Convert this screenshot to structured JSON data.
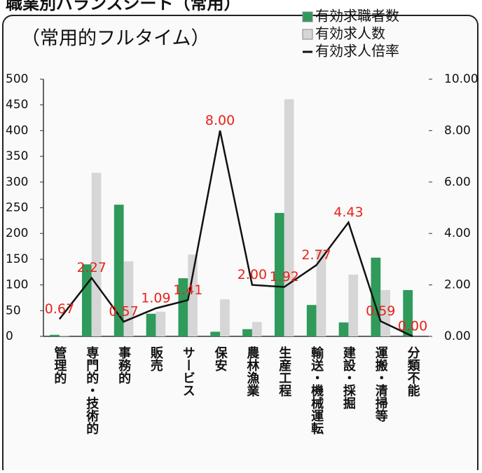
{
  "chart_data": {
    "type": "bar_line",
    "title": "職業別バランスシート（常用）",
    "subtitle": "（常用的フルタイム）",
    "categories": [
      "管理的",
      "専門的・技術的",
      "事務的",
      "販売",
      "サービス",
      "保安",
      "農林漁業",
      "生産工程",
      "輸送・機械運転",
      "建設・採掘",
      "運搬・清掃等",
      "分類不能"
    ],
    "series": [
      {
        "name": "有効求職者数",
        "color": "#2f9a5a",
        "type": "bar",
        "values": [
          3,
          140,
          256,
          44,
          113,
          9,
          14,
          240,
          61,
          27,
          153,
          90
        ]
      },
      {
        "name": "有効求人数",
        "color": "#d6d6d6",
        "type": "bar",
        "values": [
          2,
          318,
          146,
          48,
          159,
          72,
          28,
          461,
          169,
          120,
          90,
          0
        ]
      },
      {
        "name": "有効求人倍率",
        "color": "#111111",
        "type": "line",
        "axis": "y2",
        "values": [
          0.67,
          2.27,
          0.57,
          1.09,
          1.41,
          8.0,
          2.0,
          1.92,
          2.77,
          4.43,
          0.59,
          0.0
        ],
        "value_labels": [
          "0.67",
          "2.27",
          "0.57",
          "1.09",
          "1.41",
          "8.00",
          "2.00",
          "1.92",
          "2.77",
          "4.43",
          "0.59",
          "0.00"
        ],
        "value_label_color": "#e8231a"
      }
    ],
    "ylim": [
      0,
      500
    ],
    "yticks": [
      0,
      50,
      100,
      150,
      200,
      250,
      300,
      350,
      400,
      450,
      500
    ],
    "y2lim": [
      0,
      10
    ],
    "y2ticks": [
      {
        "value": 0,
        "label": "0.00"
      },
      {
        "value": 2,
        "label": "2.00"
      },
      {
        "value": 4,
        "label": "4.00"
      },
      {
        "value": 6,
        "label": "6.00"
      },
      {
        "value": 8,
        "label": "8.00"
      },
      {
        "value": 10,
        "label": "10.00"
      }
    ]
  }
}
